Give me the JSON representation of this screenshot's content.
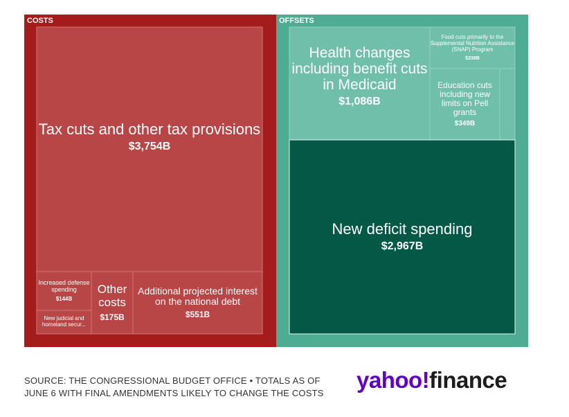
{
  "colors": {
    "costs_frame": "#a51c1c",
    "costs_cell": "#b94646",
    "offsets_frame": "#4eac93",
    "offsets_cell": "#70bfaa",
    "deficit_cell": "#035946"
  },
  "chart_data": {
    "type": "treemap",
    "unit": "B",
    "groups": [
      {
        "name": "COSTS",
        "items": [
          {
            "name": "Tax cuts and other tax provisions",
            "value": 3754,
            "label": "$3,754B"
          },
          {
            "name": "Increased defense spending",
            "value": 144,
            "label": "$144B"
          },
          {
            "name": "New judicial and homeland secur...",
            "value": 0,
            "label": ""
          },
          {
            "name": "Other costs",
            "value": 175,
            "label": "$175B"
          },
          {
            "name": "Additional projected interest on the national debt",
            "value": 551,
            "label": "$551B"
          }
        ]
      },
      {
        "name": "OFFSETS",
        "items": [
          {
            "name": "Health changes including benefit cuts in Medicaid",
            "value": 1086,
            "label": "$1,086B"
          },
          {
            "name": "Food cuts primarily to the Supplemental Nutrition Assistance (SNAP) Program",
            "value": 238,
            "label": "$238B"
          },
          {
            "name": "Education cuts including new limits on Pell grants",
            "value": 349,
            "label": "$349B"
          },
          {
            "name": "New deficit spending",
            "value": 2967,
            "label": "$2,967B"
          }
        ]
      }
    ]
  },
  "footer": {
    "source": "SOURCE: THE CONGRESSIONAL BUDGET OFFICE • TOTALS AS OF JUNE 6 WITH FINAL AMENDMENTS LIKELY TO CHANGE THE COSTS",
    "logo_part_a": "yahoo!",
    "logo_part_b": "finance"
  }
}
